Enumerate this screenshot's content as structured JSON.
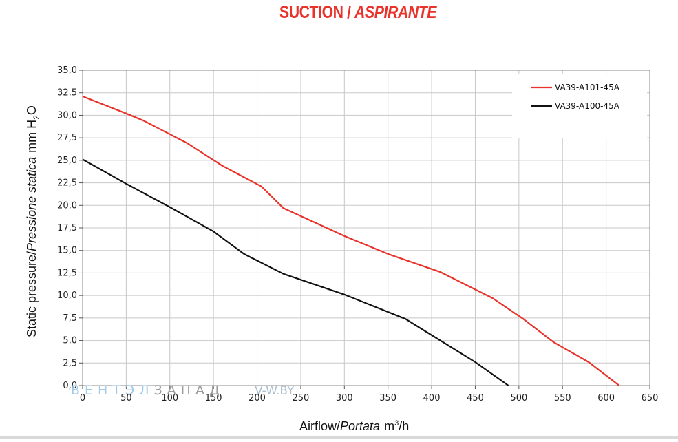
{
  "title": {
    "main": "SUCTION",
    "sep": "/",
    "italic": "ASPIRANTE"
  },
  "colors": {
    "title": "#e8322a",
    "series1": "#e8322a",
    "series2": "#111111",
    "grid": "#c8c8c8"
  },
  "watermark": {
    "part1": "ВЕНТЭЛ",
    "part2": "ЗАПАД",
    "site": "V-W.BY"
  },
  "chart_data": {
    "type": "line",
    "xlabel": "Airflow/Portata m³/h",
    "xlabel_parts": {
      "plain": "Airflow/",
      "italic": "Portata",
      "unit_pre": "m",
      "unit_sup": "3",
      "unit_post": "/h"
    },
    "ylabel": "Static pressure/Pressione statica mm H2O",
    "ylabel_parts": {
      "plain": "Static pressure/",
      "italic": "Pressione statica",
      "unit_pre": "mm  H",
      "unit_sub": "2",
      "unit_post": "O"
    },
    "xlim": [
      0,
      650
    ],
    "ylim": [
      0,
      35
    ],
    "xticks": [
      0,
      50,
      100,
      150,
      200,
      250,
      300,
      350,
      400,
      450,
      500,
      550,
      600,
      650
    ],
    "yticks": [
      "0,0",
      "2,5",
      "5,0",
      "7,5",
      "10,0",
      "12,5",
      "15,0",
      "17,5",
      "20,0",
      "22,5",
      "25,0",
      "27,5",
      "30,0",
      "32,5",
      "35,0"
    ],
    "grid": true,
    "legend_position": "top-right",
    "series": [
      {
        "name": "VA39-A101-45A",
        "color": "#e8322a",
        "x": [
          0,
          50,
          70,
          120,
          160,
          205,
          230,
          300,
          350,
          410,
          470,
          505,
          540,
          580,
          615
        ],
        "y": [
          32.1,
          30.2,
          29.4,
          26.9,
          24.4,
          22.1,
          19.7,
          16.6,
          14.6,
          12.6,
          9.7,
          7.4,
          4.8,
          2.6,
          0
        ]
      },
      {
        "name": "VA39-A100-45A",
        "color": "#111111",
        "x": [
          0,
          50,
          100,
          150,
          185,
          230,
          300,
          370,
          450,
          488
        ],
        "y": [
          25.1,
          22.4,
          19.8,
          17.1,
          14.6,
          12.4,
          10.1,
          7.4,
          2.6,
          0
        ]
      }
    ]
  }
}
